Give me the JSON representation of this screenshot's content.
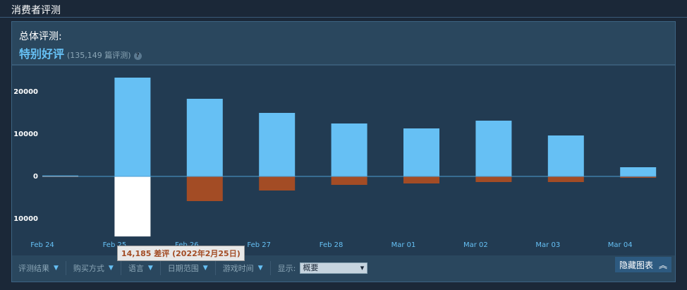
{
  "header": "消费者评测",
  "summary": {
    "label": "总体评测:",
    "rating": "特别好评",
    "count": "(135,149 篇评测)",
    "help": "?"
  },
  "chart_data": {
    "type": "bar",
    "categories": [
      "Feb 24",
      "Feb 25",
      "Feb 26",
      "Feb 27",
      "Feb 28",
      "Mar 01",
      "Mar 02",
      "Mar 03",
      "Mar 04"
    ],
    "series": [
      {
        "name": "好评",
        "color": "#66c0f4",
        "values": [
          200,
          23333,
          18333,
          15000,
          12500,
          11333,
          13167,
          9667,
          2167
        ]
      },
      {
        "name": "差评",
        "color": "#a34c25",
        "values": [
          -100,
          -14185,
          -5833,
          -3333,
          -2000,
          -1667,
          -1333,
          -1333,
          -333
        ],
        "highlight": {
          "index": 1,
          "color": "#ffffff"
        }
      }
    ],
    "ylim": [
      -15000,
      26000
    ],
    "yticks": [
      {
        "value": -10000,
        "label": "10000"
      },
      0,
      10000,
      20000
    ],
    "annotation": "14,185 差评 (2022年2月25日)"
  },
  "filters": [
    "评测结果",
    "购买方式",
    "语言",
    "日期范围",
    "游戏时间"
  ],
  "display_label": "显示:",
  "display_value": "概要",
  "hide_button": "隐藏图表"
}
